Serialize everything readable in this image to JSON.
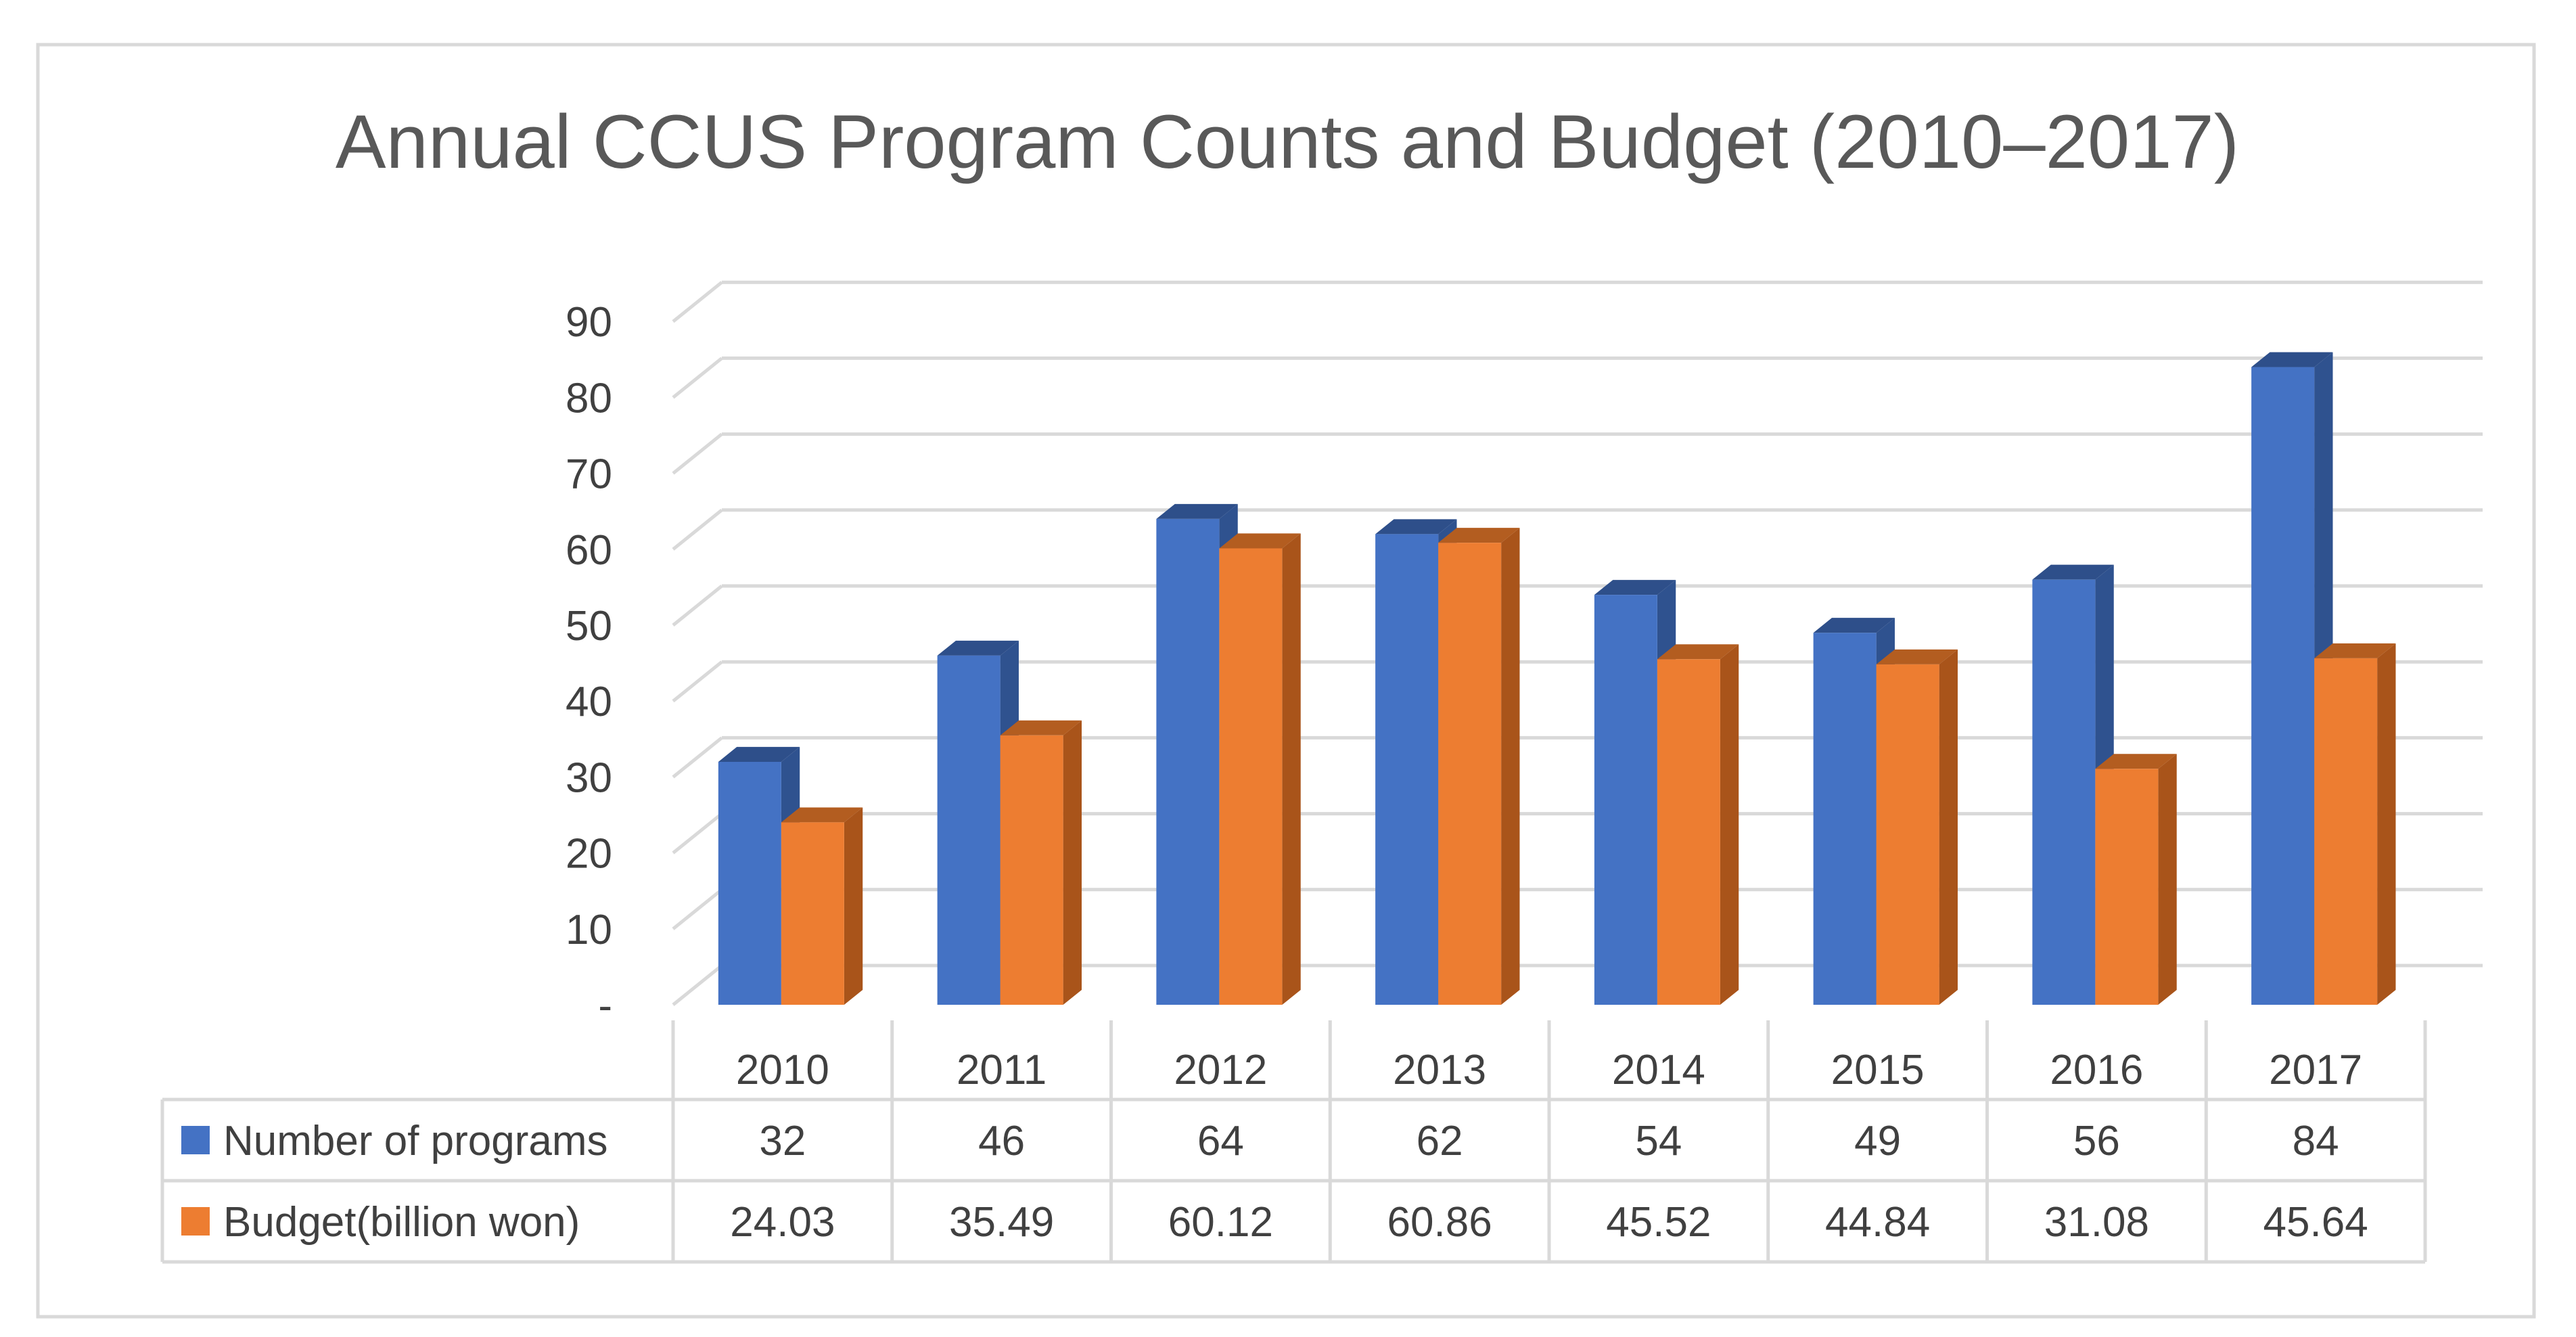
{
  "chart_data": {
    "type": "bar",
    "title": "Annual CCUS Program Counts and Budget (2010–2017)",
    "categories": [
      "2010",
      "2011",
      "2012",
      "2013",
      "2014",
      "2015",
      "2016",
      "2017"
    ],
    "series": [
      {
        "name": "Number of programs",
        "values": [
          32,
          46,
          64,
          62,
          54,
          49,
          56,
          84
        ],
        "value_labels": [
          "32",
          "46",
          "64",
          "62",
          "54",
          "49",
          "56",
          "84"
        ],
        "color": "#4472C4",
        "color_side": "#2F528F",
        "color_top": "#2E4F8A"
      },
      {
        "name": "Budget(billion won)",
        "values": [
          24.03,
          35.49,
          60.12,
          60.86,
          45.52,
          44.84,
          31.08,
          45.64
        ],
        "value_labels": [
          "24.03",
          "35.49",
          "60.12",
          "60.86",
          "45.52",
          "44.84",
          "31.08",
          "45.64"
        ],
        "color": "#ED7D31",
        "color_side": "#A9541A",
        "color_top": "#B35D20"
      }
    ],
    "ylim": [
      0,
      90
    ],
    "yticks": [
      {
        "value": 0,
        "label": "-"
      },
      {
        "value": 10,
        "label": "10"
      },
      {
        "value": 20,
        "label": "20"
      },
      {
        "value": 30,
        "label": "30"
      },
      {
        "value": 40,
        "label": "40"
      },
      {
        "value": 50,
        "label": "50"
      },
      {
        "value": 60,
        "label": "60"
      },
      {
        "value": 70,
        "label": "70"
      },
      {
        "value": 80,
        "label": "80"
      },
      {
        "value": 90,
        "label": "90"
      }
    ],
    "grid": true,
    "style": "3d-clustered-column",
    "legend": "data-table"
  },
  "colors": {
    "title": "#595959",
    "text": "#404040",
    "grid": "#D9D9D9",
    "border": "#D9D9D9"
  }
}
